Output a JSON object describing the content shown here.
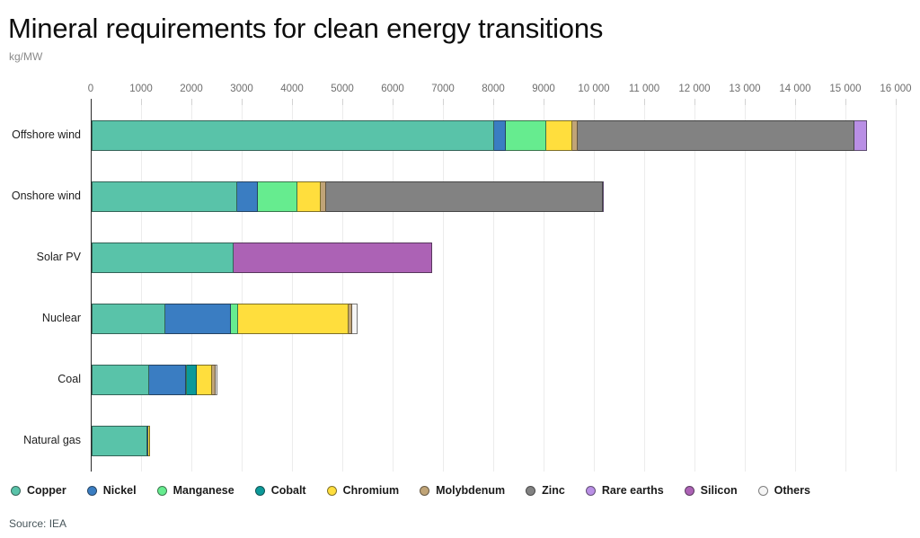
{
  "title": "Mineral requirements for clean energy transitions",
  "unit_label": "kg/MW",
  "source": "Source: IEA",
  "colors": {
    "Copper": "#59C3A9",
    "Nickel": "#3A7DC2",
    "Manganese": "#66EC8F",
    "Cobalt": "#0B9999",
    "Chromium": "#FFDE3D",
    "Molybdenum": "#C0A477",
    "Zinc": "#828282",
    "Rare earths": "#B98FE5",
    "Silicon": "#AC62B5",
    "Others": "#F5F5F5"
  },
  "chart_data": {
    "type": "bar",
    "orientation": "horizontal",
    "stacked": true,
    "title": "Mineral requirements for clean energy transitions",
    "xlabel": "kg/MW",
    "ylabel": "",
    "xlim": [
      0,
      16000
    ],
    "grid": true,
    "legend_position": "bottom",
    "x_ticks": [
      0,
      1000,
      2000,
      3000,
      4000,
      5000,
      6000,
      7000,
      8000,
      9000,
      10000,
      11000,
      12000,
      13000,
      14000,
      15000,
      16000
    ],
    "x_tick_labels": [
      "0",
      "1000",
      "2000",
      "3000",
      "4000",
      "5000",
      "6000",
      "7000",
      "8000",
      "9000",
      "10 000",
      "11 000",
      "12 000",
      "13 000",
      "14 000",
      "15 000",
      "16 000"
    ],
    "categories": [
      "Offshore wind",
      "Onshore wind",
      "Solar PV",
      "Nuclear",
      "Coal",
      "Natural gas"
    ],
    "legend": [
      "Copper",
      "Nickel",
      "Manganese",
      "Cobalt",
      "Chromium",
      "Molybdenum",
      "Zinc",
      "Rare earths",
      "Silicon",
      "Others"
    ],
    "series": [
      {
        "name": "Copper",
        "values": [
          8000,
          2900,
          2822,
          1473,
          1150,
          1100
        ]
      },
      {
        "name": "Nickel",
        "values": [
          240,
          404,
          0,
          1297,
          722,
          16
        ]
      },
      {
        "name": "Manganese",
        "values": [
          790,
          780,
          0,
          148,
          5,
          0
        ]
      },
      {
        "name": "Cobalt",
        "values": [
          0,
          0,
          0,
          0,
          201,
          0
        ]
      },
      {
        "name": "Chromium",
        "values": [
          525,
          470,
          0,
          2190,
          308,
          48
        ]
      },
      {
        "name": "Molybdenum",
        "values": [
          109,
          99,
          0,
          70,
          66,
          0
        ]
      },
      {
        "name": "Zinc",
        "values": [
          5500,
          5500,
          0,
          0,
          0,
          0
        ]
      },
      {
        "name": "Rare earths",
        "values": [
          239,
          14,
          0,
          0,
          0,
          0
        ]
      },
      {
        "name": "Silicon",
        "values": [
          0,
          0,
          3948,
          0,
          0,
          0
        ]
      },
      {
        "name": "Others",
        "values": [
          0,
          0,
          0,
          100,
          33,
          0
        ]
      }
    ]
  }
}
